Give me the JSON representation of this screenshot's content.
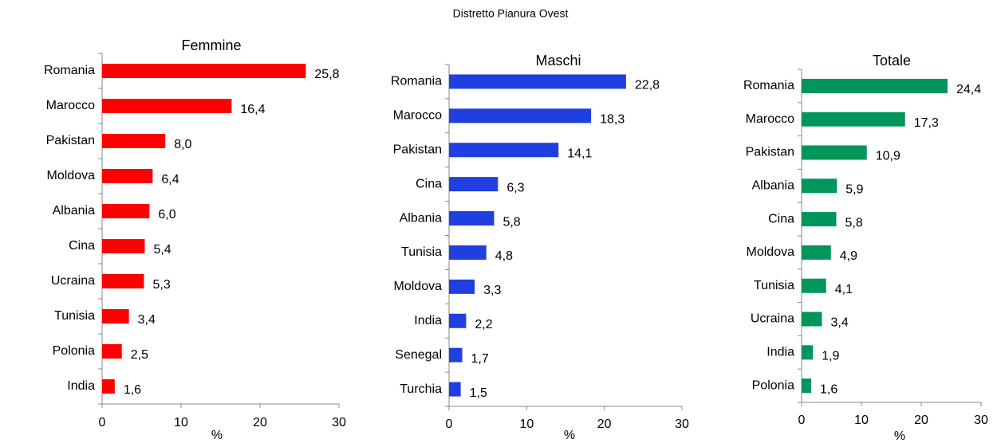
{
  "title": "Distretto Pianura Ovest",
  "chart_data": [
    {
      "type": "barh",
      "title": "Femmine",
      "xlabel": "%",
      "color": "#ff0000",
      "categories": [
        "Romania",
        "Marocco",
        "Pakistan",
        "Moldova",
        "Albania",
        "Cina",
        "Ucraina",
        "Tunisia",
        "Polonia",
        "India"
      ],
      "values": [
        25.8,
        16.4,
        8.0,
        6.4,
        6.0,
        5.4,
        5.3,
        3.4,
        2.5,
        1.6
      ],
      "value_labels": [
        "25,8",
        "16,4",
        "8,0",
        "6,4",
        "6,0",
        "5,4",
        "5,3",
        "3,4",
        "2,5",
        "1,6"
      ],
      "xlim": [
        0,
        30
      ],
      "xticks": [
        0,
        10,
        20,
        30
      ]
    },
    {
      "type": "barh",
      "title": "Maschi",
      "xlabel": "%",
      "color": "#1f3fe0",
      "categories": [
        "Romania",
        "Marocco",
        "Pakistan",
        "Cina",
        "Albania",
        "Tunisia",
        "Moldova",
        "India",
        "Senegal",
        "Turchia"
      ],
      "values": [
        22.8,
        18.3,
        14.1,
        6.3,
        5.8,
        4.8,
        3.3,
        2.2,
        1.7,
        1.5
      ],
      "value_labels": [
        "22,8",
        "18,3",
        "14,1",
        "6,3",
        "5,8",
        "4,8",
        "3,3",
        "2,2",
        "1,7",
        "1,5"
      ],
      "xlim": [
        0,
        30
      ],
      "xticks": [
        0,
        10,
        20,
        30
      ]
    },
    {
      "type": "barh",
      "title": "Totale",
      "xlabel": "%",
      "color": "#00955a",
      "categories": [
        "Romania",
        "Marocco",
        "Pakistan",
        "Albania",
        "Cina",
        "Moldova",
        "Tunisia",
        "Ucraina",
        "India",
        "Polonia"
      ],
      "values": [
        24.4,
        17.3,
        10.9,
        5.9,
        5.8,
        4.9,
        4.1,
        3.4,
        1.9,
        1.6
      ],
      "value_labels": [
        "24,4",
        "17,3",
        "10,9",
        "5,9",
        "5,8",
        "4,9",
        "4,1",
        "3,4",
        "1,9",
        "1,6"
      ],
      "xlim": [
        0,
        30
      ],
      "xticks": [
        0,
        10,
        20,
        30
      ]
    }
  ]
}
